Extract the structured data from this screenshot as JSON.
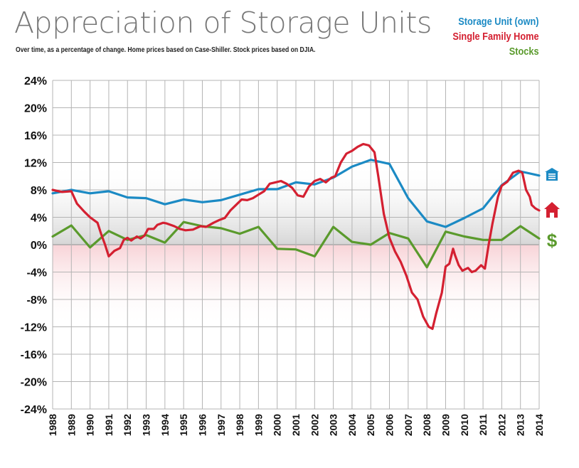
{
  "chart_data": {
    "type": "line",
    "title": "Appreciation of Storage Units",
    "subtitle": "Over time, as a percentage of change. Home prices based on Case-Shiller. Stock prices based on DJIA.",
    "xlabel": "",
    "ylabel": "",
    "ylim": [
      -24,
      24
    ],
    "xlim": [
      1988,
      2014
    ],
    "grid": true,
    "legend_position": "top-right",
    "yticks": [
      24,
      20,
      16,
      12,
      8,
      4,
      0,
      -4,
      -8,
      -12,
      -16,
      -20,
      -24
    ],
    "ytick_labels": [
      "24%",
      "20%",
      "16%",
      "12%",
      "8%",
      "4%",
      "0%",
      "-4%",
      "-8%",
      "-12%",
      "-16%",
      "-20%",
      "-24%"
    ],
    "categories": [
      "1988",
      "1989",
      "1990",
      "1991",
      "1992",
      "1993",
      "1994",
      "1995",
      "1996",
      "1997",
      "1998",
      "1999",
      "2000",
      "2001",
      "2002",
      "2003",
      "2004",
      "2005",
      "2006",
      "2007",
      "2008",
      "2009",
      "2010",
      "2011",
      "2012",
      "2013",
      "2014"
    ],
    "series": [
      {
        "name": "Storage Unit  (own)",
        "color": "#1b8ac4",
        "icon": "garage-icon",
        "x": [
          1988,
          1989,
          1990,
          1991,
          1992,
          1993,
          1994,
          1995,
          1996,
          1997,
          1998,
          1999,
          2000,
          2001,
          2002,
          2003,
          2004,
          2005,
          2006,
          2007,
          2008,
          2009,
          2010,
          2011,
          2012,
          2013,
          2014
        ],
        "values": [
          7.5,
          8.0,
          7.5,
          7.8,
          6.9,
          6.8,
          5.9,
          6.6,
          6.2,
          6.5,
          7.3,
          8.1,
          8.1,
          9.1,
          8.8,
          9.8,
          11.4,
          12.4,
          11.8,
          6.8,
          3.4,
          2.6,
          3.9,
          5.3,
          8.7,
          10.7,
          10.1
        ]
      },
      {
        "name": "Single Family Home",
        "color": "#d42031",
        "icon": "house-icon",
        "x": [
          1988,
          1988.5,
          1989,
          1989.3,
          1989.7,
          1990,
          1990.4,
          1990.6,
          1990.8,
          1991,
          1991.3,
          1991.6,
          1991.8,
          1992,
          1992.2,
          1992.5,
          1992.7,
          1992.9,
          1993.1,
          1993.4,
          1993.6,
          1993.9,
          1994.1,
          1994.5,
          1994.8,
          1995.1,
          1995.5,
          1995.9,
          1996.2,
          1996.6,
          1996.9,
          1997.2,
          1997.5,
          1997.8,
          1998.1,
          1998.4,
          1998.7,
          1999,
          1999.3,
          1999.6,
          1999.9,
          2000.2,
          2000.5,
          2000.8,
          2001.1,
          2001.4,
          2001.7,
          2002,
          2002.3,
          2002.6,
          2002.9,
          2003.1,
          2003.4,
          2003.7,
          2004,
          2004.3,
          2004.6,
          2004.9,
          2005.2,
          2005.4,
          2005.7,
          2006,
          2006.3,
          2006.6,
          2006.9,
          2007.2,
          2007.5,
          2007.8,
          2008.1,
          2008.3,
          2008.5,
          2008.8,
          2009,
          2009.2,
          2009.4,
          2009.5,
          2009.7,
          2009.9,
          2010.2,
          2010.4,
          2010.6,
          2010.9,
          2011.1,
          2011.3,
          2011.5,
          2011.8,
          2012,
          2012.3,
          2012.6,
          2012.9,
          2013.1,
          2013.3,
          2013.5,
          2013.6,
          2013.8,
          2014
        ],
        "values": [
          8.0,
          7.7,
          7.8,
          6.0,
          4.8,
          4.0,
          3.2,
          1.5,
          0.0,
          -1.7,
          -0.9,
          -0.5,
          0.7,
          1.0,
          0.6,
          1.2,
          0.9,
          1.3,
          2.3,
          2.3,
          2.9,
          3.2,
          3.1,
          2.7,
          2.3,
          2.1,
          2.2,
          2.7,
          2.6,
          3.2,
          3.6,
          3.9,
          5.0,
          5.8,
          6.6,
          6.5,
          6.8,
          7.3,
          7.8,
          8.9,
          9.1,
          9.3,
          8.9,
          8.3,
          7.2,
          7.0,
          8.5,
          9.3,
          9.6,
          9.1,
          9.8,
          10.0,
          12.0,
          13.3,
          13.7,
          14.3,
          14.7,
          14.5,
          13.5,
          10.0,
          4.5,
          1.0,
          -1.0,
          -2.5,
          -4.5,
          -7.0,
          -8.0,
          -10.5,
          -12.0,
          -12.3,
          -10.0,
          -7.0,
          -3.2,
          -2.8,
          -0.6,
          -1.5,
          -3.0,
          -3.8,
          -3.4,
          -4.0,
          -3.8,
          -3.0,
          -3.5,
          0.0,
          3.0,
          7.0,
          8.6,
          9.2,
          10.5,
          10.8,
          10.5,
          8.0,
          7.0,
          5.8,
          5.3,
          5.0
        ]
      },
      {
        "name": "Stocks",
        "color": "#5a9a2c",
        "icon": "dollar-icon",
        "x": [
          1988,
          1989,
          1990,
          1991,
          1992,
          1993,
          1994,
          1995,
          1996,
          1997,
          1998,
          1999,
          2000,
          2001,
          2002,
          2003,
          2004,
          2005,
          2006,
          2007,
          2008,
          2009,
          2010,
          2011,
          2012,
          2013,
          2014
        ],
        "values": [
          1.2,
          2.8,
          -0.4,
          2.0,
          0.7,
          1.4,
          0.3,
          3.3,
          2.7,
          2.4,
          1.6,
          2.6,
          -0.6,
          -0.7,
          -1.7,
          2.6,
          0.4,
          0.0,
          1.7,
          0.9,
          -3.3,
          1.9,
          1.2,
          0.7,
          0.7,
          2.7,
          0.9
        ]
      }
    ]
  },
  "colors": {
    "title": "#777777",
    "grid": "#b4b4b4",
    "positive_band": "#d8d8d8",
    "negative_band": "#f6d5d8"
  }
}
